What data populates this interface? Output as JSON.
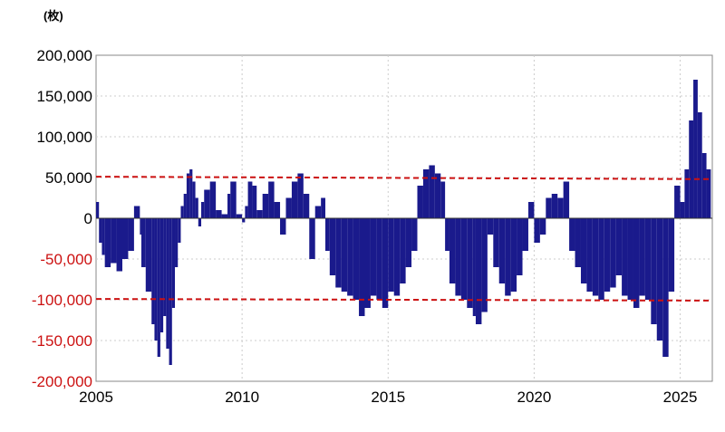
{
  "chart_data": {
    "type": "bar",
    "title": "",
    "unit_label": "(枚)",
    "xlabel": "",
    "ylabel": "",
    "xlim": [
      2005,
      2026.1
    ],
    "ylim": [
      -200000,
      200000
    ],
    "grid": true,
    "x_ticks": [
      {
        "value": 2005,
        "label": "2005"
      },
      {
        "value": 2010,
        "label": "2010"
      },
      {
        "value": 2015,
        "label": "2015"
      },
      {
        "value": 2020,
        "label": "2020"
      },
      {
        "value": 2025,
        "label": "2025"
      }
    ],
    "y_ticks": [
      {
        "value": 200000,
        "label": "200,000"
      },
      {
        "value": 150000,
        "label": "150,000"
      },
      {
        "value": 100000,
        "label": "100,000"
      },
      {
        "value": 50000,
        "label": "50,000"
      },
      {
        "value": 0,
        "label": "0"
      },
      {
        "value": -50000,
        "label": "-50,000"
      },
      {
        "value": -100000,
        "label": "-100,000"
      },
      {
        "value": -150000,
        "label": "-150,000"
      },
      {
        "value": -200000,
        "label": "-200,000"
      }
    ],
    "colors": {
      "bar": "#1a1a8c",
      "reference_line": "#cc1111",
      "positive_tick": "#000000",
      "negative_tick": "#cc1111",
      "grid": "#cccccc"
    },
    "reference_lines": [
      {
        "x": [
          2005,
          2026.0
        ],
        "y": [
          51000,
          48000
        ]
      },
      {
        "x": [
          2005,
          2026.0
        ],
        "y": [
          -99000,
          -101000
        ]
      }
    ],
    "series": [
      {
        "x": [
          2005.0,
          2005.1,
          2005.2,
          2005.3,
          2005.5,
          2005.7,
          2005.9,
          2006.1,
          2006.3,
          2006.5,
          2006.55,
          2006.7,
          2006.9,
          2007.0,
          2007.1,
          2007.2,
          2007.3,
          2007.4,
          2007.5,
          2007.6,
          2007.7,
          2007.8,
          2007.9,
          2008.0,
          2008.1,
          2008.2,
          2008.3,
          2008.4,
          2008.5,
          2008.6,
          2008.7,
          2008.9,
          2009.1,
          2009.3,
          2009.5,
          2009.6,
          2009.8,
          2010.0,
          2010.1,
          2010.2,
          2010.35,
          2010.5,
          2010.7,
          2010.9,
          2011.1,
          2011.3,
          2011.5,
          2011.7,
          2011.9,
          2012.1,
          2012.3,
          2012.5,
          2012.7,
          2012.85,
          2013.0,
          2013.2,
          2013.4,
          2013.6,
          2013.8,
          2014.0,
          2014.2,
          2014.4,
          2014.6,
          2014.8,
          2015.0,
          2015.2,
          2015.4,
          2015.6,
          2015.8,
          2016.0,
          2016.2,
          2016.4,
          2016.6,
          2016.8,
          2016.95,
          2017.1,
          2017.3,
          2017.5,
          2017.7,
          2017.9,
          2018.0,
          2018.2,
          2018.4,
          2018.6,
          2018.8,
          2019.0,
          2019.2,
          2019.4,
          2019.6,
          2019.8,
          2020.0,
          2020.2,
          2020.4,
          2020.6,
          2020.8,
          2021.0,
          2021.2,
          2021.4,
          2021.6,
          2021.8,
          2022.0,
          2022.2,
          2022.4,
          2022.6,
          2022.8,
          2023.0,
          2023.2,
          2023.4,
          2023.6,
          2023.8,
          2024.0,
          2024.2,
          2024.4,
          2024.6,
          2024.8,
          2025.0,
          2025.15,
          2025.3,
          2025.45,
          2025.6,
          2025.75,
          2025.9
        ],
        "values": [
          20000,
          -30000,
          -45000,
          -60000,
          -55000,
          -65000,
          -50000,
          -40000,
          15000,
          -20000,
          -60000,
          -90000,
          -130000,
          -150000,
          -170000,
          -140000,
          -120000,
          -160000,
          -180000,
          -110000,
          -60000,
          -30000,
          15000,
          30000,
          55000,
          60000,
          45000,
          25000,
          -10000,
          20000,
          35000,
          45000,
          10000,
          5000,
          30000,
          45000,
          5000,
          -5000,
          15000,
          45000,
          40000,
          10000,
          30000,
          45000,
          20000,
          -20000,
          25000,
          45000,
          55000,
          30000,
          -50000,
          15000,
          25000,
          -40000,
          -70000,
          -85000,
          -90000,
          -95000,
          -100000,
          -120000,
          -110000,
          -95000,
          -100000,
          -110000,
          -90000,
          -95000,
          -80000,
          -60000,
          -40000,
          40000,
          60000,
          65000,
          55000,
          45000,
          -40000,
          -80000,
          -95000,
          -100000,
          -110000,
          -120000,
          -130000,
          -115000,
          -20000,
          -60000,
          -80000,
          -95000,
          -90000,
          -70000,
          -40000,
          20000,
          -30000,
          -20000,
          25000,
          30000,
          25000,
          45000,
          -40000,
          -60000,
          -80000,
          -90000,
          -95000,
          -100000,
          -90000,
          -85000,
          -70000,
          -95000,
          -100000,
          -110000,
          -95000,
          -100000,
          -130000,
          -150000,
          -170000,
          -90000,
          40000,
          20000,
          60000,
          120000,
          170000,
          130000,
          80000,
          60000
        ]
      }
    ]
  }
}
